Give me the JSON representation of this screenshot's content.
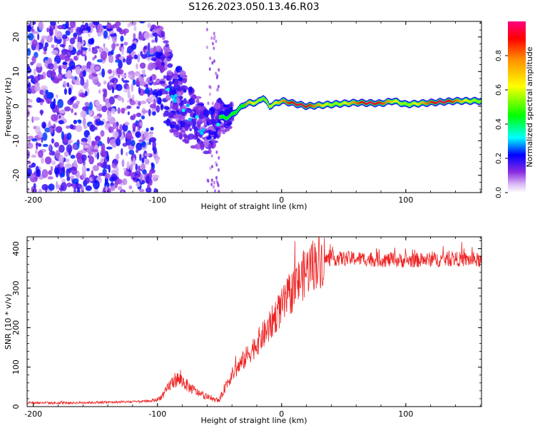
{
  "title": "S126.2023.050.13.46.R03",
  "colors": {
    "snr_line": "#ee2222",
    "background": "#ffffff",
    "colormap": [
      "#ffffff",
      "#e9d6f8",
      "#c79bf1",
      "#8a2be2",
      "#5a00ff",
      "#0000ff",
      "#00ffff",
      "#00ff00",
      "#ffff00",
      "#ff8c00",
      "#ff0000",
      "#ff0080"
    ]
  },
  "chart_data": [
    {
      "type": "heatmap",
      "name": "spectrogram",
      "xlabel": "Height of straight line (km)",
      "ylabel": "Frequency (Hz)",
      "xlim": [
        -205,
        161
      ],
      "ylim": [
        -25,
        24.5
      ],
      "xticks": [
        -200,
        -100,
        0,
        100
      ],
      "xtick_labels": [
        "-200",
        "-100",
        "0",
        "100"
      ],
      "yticks": [
        -20,
        -10,
        0,
        10,
        20
      ],
      "ytick_labels": [
        "-20",
        "-10",
        "0",
        "10",
        "20"
      ],
      "colorbar": {
        "label": "Normalized spectral amplitude",
        "range": [
          0,
          1
        ],
        "ticks": [
          0,
          0.2,
          0.4,
          0.6,
          0.8
        ],
        "tick_labels": [
          "0.0",
          "0.2",
          "0.4",
          "0.6",
          "0.8"
        ]
      },
      "features": {
        "noise_region_km": [
          -205,
          -100
        ],
        "noise_amplitude_range": [
          0.05,
          0.25
        ],
        "transition_region_km": [
          -100,
          -40
        ],
        "carrier_start_km": -50,
        "carrier_track": [
          {
            "x": -100,
            "y": 12
          },
          {
            "x": -95,
            "y": 9
          },
          {
            "x": -90,
            "y": 4
          },
          {
            "x": -85,
            "y": 2
          },
          {
            "x": -80,
            "y": 0
          },
          {
            "x": -75,
            "y": -2
          },
          {
            "x": -70,
            "y": -4
          },
          {
            "x": -65,
            "y": -6
          },
          {
            "x": -60,
            "y": -8
          },
          {
            "x": -55,
            "y": -6
          },
          {
            "x": -50,
            "y": -3
          },
          {
            "x": -45,
            "y": -3.5
          },
          {
            "x": -40,
            "y": -2.5
          },
          {
            "x": -35,
            "y": -1
          },
          {
            "x": -30,
            "y": 0.5
          },
          {
            "x": -25,
            "y": 1
          },
          {
            "x": -20,
            "y": 1
          },
          {
            "x": -15,
            "y": 2.5
          },
          {
            "x": -10,
            "y": 0
          },
          {
            "x": 0,
            "y": 1.5
          },
          {
            "x": 20,
            "y": 0
          },
          {
            "x": 40,
            "y": 0.5
          },
          {
            "x": 60,
            "y": 1
          },
          {
            "x": 80,
            "y": 0.8
          },
          {
            "x": 90,
            "y": 1.5
          },
          {
            "x": 100,
            "y": 0.5
          },
          {
            "x": 120,
            "y": 1
          },
          {
            "x": 140,
            "y": 1.5
          },
          {
            "x": 161,
            "y": 1.5
          }
        ]
      }
    },
    {
      "type": "line",
      "name": "snr",
      "xlabel": "Height of straight line (km)",
      "ylabel": "SNR (10 * v/v)",
      "xlim": [
        -205,
        161
      ],
      "ylim": [
        0,
        430
      ],
      "xticks": [
        -200,
        -100,
        0,
        100
      ],
      "xtick_labels": [
        "-200",
        "-100",
        "0",
        "100"
      ],
      "yticks": [
        0,
        100,
        200,
        300,
        400
      ],
      "ytick_labels": [
        "0",
        "100",
        "200",
        "300",
        "400"
      ],
      "series": [
        {
          "name": "SNR",
          "x": [
            -205,
            -180,
            -160,
            -140,
            -120,
            -105,
            -100,
            -95,
            -90,
            -85,
            -80,
            -75,
            -70,
            -65,
            -60,
            -55,
            -50,
            -45,
            -40,
            -35,
            -30,
            -25,
            -20,
            -15,
            -10,
            -5,
            0,
            5,
            10,
            15,
            20,
            25,
            30,
            35,
            40,
            60,
            80,
            100,
            120,
            140,
            161
          ],
          "y": [
            10,
            9,
            10,
            11,
            12,
            14,
            18,
            30,
            55,
            70,
            65,
            50,
            40,
            30,
            25,
            18,
            15,
            55,
            80,
            100,
            120,
            140,
            160,
            180,
            200,
            230,
            250,
            275,
            300,
            320,
            345,
            360,
            368,
            372,
            375,
            375,
            372,
            370,
            372,
            374,
            370
          ]
        }
      ]
    }
  ]
}
